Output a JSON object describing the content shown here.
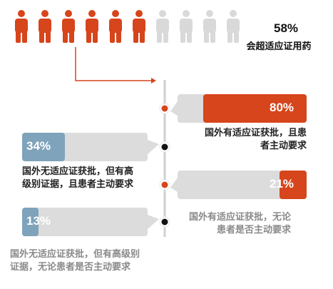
{
  "chart_data": {
    "type": "bar",
    "headline": {
      "value": "58%",
      "label": "会超适应证用药",
      "share": 0.58
    },
    "people_icons": {
      "total": 10,
      "highlighted": 6
    },
    "values": [
      80,
      34,
      21,
      13
    ],
    "labels": [
      "80%",
      "34%",
      "21%",
      "13%"
    ],
    "categories": [
      "国外有适应证获批，且患者主动要求",
      "国外无适应证获批，但有高级别证据，且患者主动要求",
      "国外有适应证获批，无论患者是否主动要求",
      "国外无适应证获批，但有高级别证据，无论患者是否主动要求"
    ],
    "descriptions": [
      [
        "国外有适应证获批，且患",
        "者主动要求"
      ],
      [
        "国外无适应证获批，但有高",
        "级别证据，且患者主动要求"
      ],
      [
        "国外有适应证获批，无论",
        "患者是否主动要求"
      ],
      [
        "国外无适应证获批，但有高级别",
        "证据，无论患者是否主动要求"
      ]
    ],
    "colors": {
      "accent": "#d6451b",
      "blue": "#7fa3ba",
      "bubble": "#dcdcdc",
      "icon_inactive": "#d9d9d9",
      "text_dark": "#222222",
      "text_gray": "#8a8a8a"
    }
  }
}
